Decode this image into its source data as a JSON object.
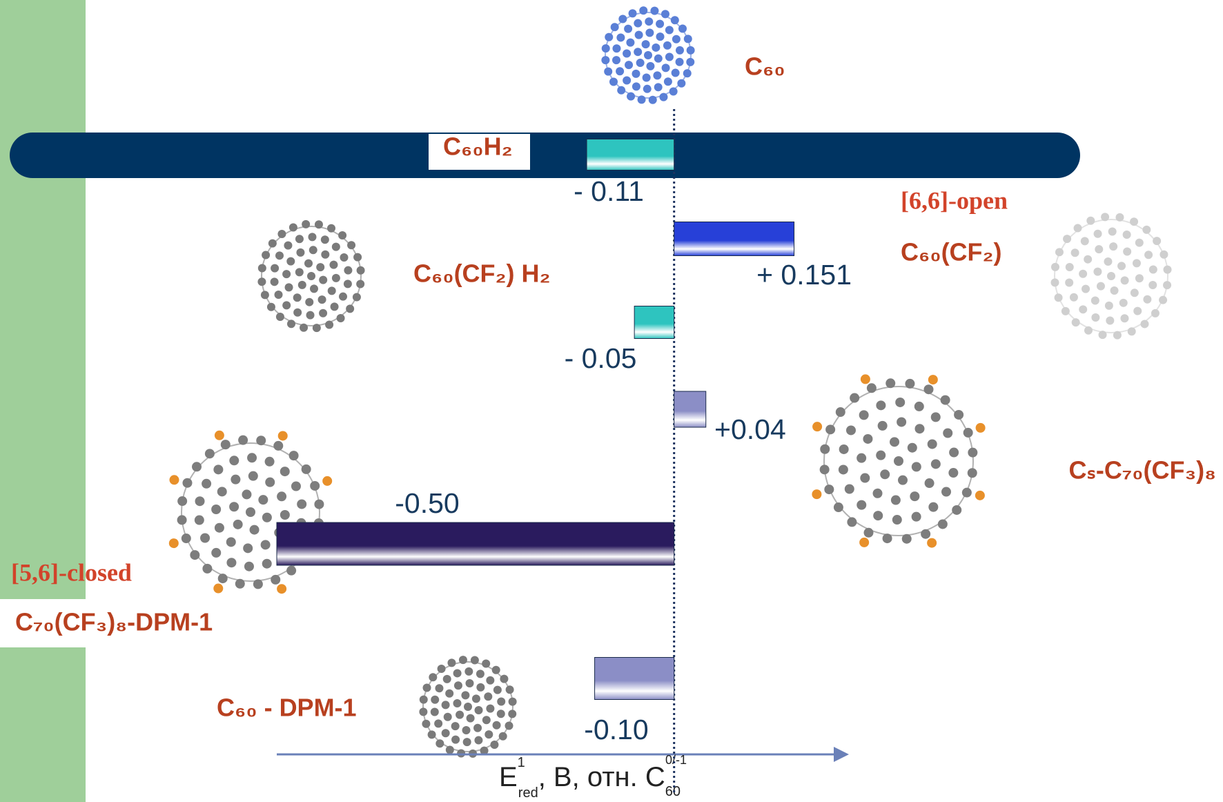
{
  "chart_data": {
    "type": "bar",
    "orientation": "horizontal",
    "reference_label": "C₆₀",
    "categories": [
      "C₆₀H₂",
      "C₆₀(CF₂)",
      "C₆₀(CF₂) H₂",
      "Cₛ-C₇₀(CF₃)₈",
      "C₇₀(CF₃)₈-DPM-1",
      "C₆₀ - DPM-1"
    ],
    "values": [
      -0.11,
      0.151,
      -0.05,
      0.04,
      -0.5,
      -0.1
    ],
    "value_labels": [
      "- 0.11",
      "+ 0.151",
      "- 0.05",
      "+0.04",
      "-0.50",
      "-0.10"
    ],
    "colors": [
      "#2ec4bf",
      "#2740d8",
      "#2ec4bf",
      "#8b8ec6",
      "#2a1b5e",
      "#8b8ec6"
    ],
    "annotations": [
      "[6,6]-open",
      "[5,6]-closed"
    ],
    "x_label": [
      "E",
      "1",
      "red",
      ", В, отн. C",
      "60",
      "0/-1"
    ],
    "xlim": [
      -0.5,
      0.22
    ]
  }
}
